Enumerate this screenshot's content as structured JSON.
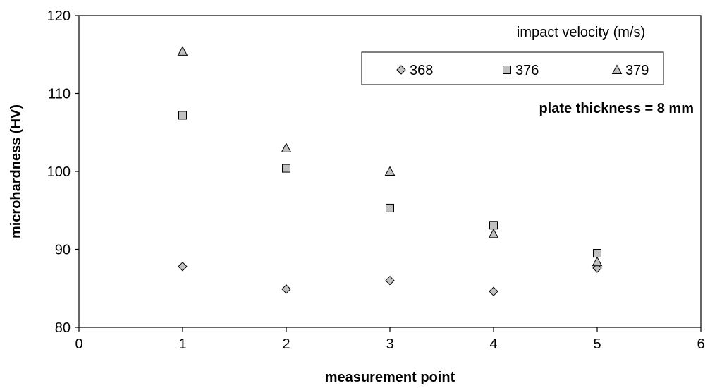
{
  "chart_data": {
    "type": "scatter",
    "xlabel": "measurement point",
    "ylabel": "microhardness (HV)",
    "xlim": [
      0,
      6
    ],
    "ylim": [
      80,
      120
    ],
    "xticks": [
      0,
      1,
      2,
      3,
      4,
      5,
      6
    ],
    "yticks": [
      80,
      90,
      100,
      110,
      120
    ],
    "grid": false,
    "legend": {
      "title": "impact velocity  (m/s)",
      "placement": "top-right"
    },
    "annotation": "plate thickness = 8 mm",
    "series": [
      {
        "name": "368",
        "marker": "diamond",
        "color": "#c0c0c0",
        "x": [
          1,
          2,
          3,
          4,
          5
        ],
        "y": [
          87.8,
          84.9,
          86.0,
          84.6,
          87.6
        ]
      },
      {
        "name": "376",
        "marker": "square",
        "color": "#c0c0c0",
        "x": [
          1,
          2,
          3,
          4,
          5
        ],
        "y": [
          107.2,
          100.4,
          95.3,
          93.1,
          89.5
        ]
      },
      {
        "name": "379",
        "marker": "triangle",
        "color": "#c0c0c0",
        "x": [
          1,
          2,
          3,
          4,
          5
        ],
        "y": [
          115.4,
          103.0,
          100.0,
          92.0,
          88.4
        ]
      }
    ]
  }
}
